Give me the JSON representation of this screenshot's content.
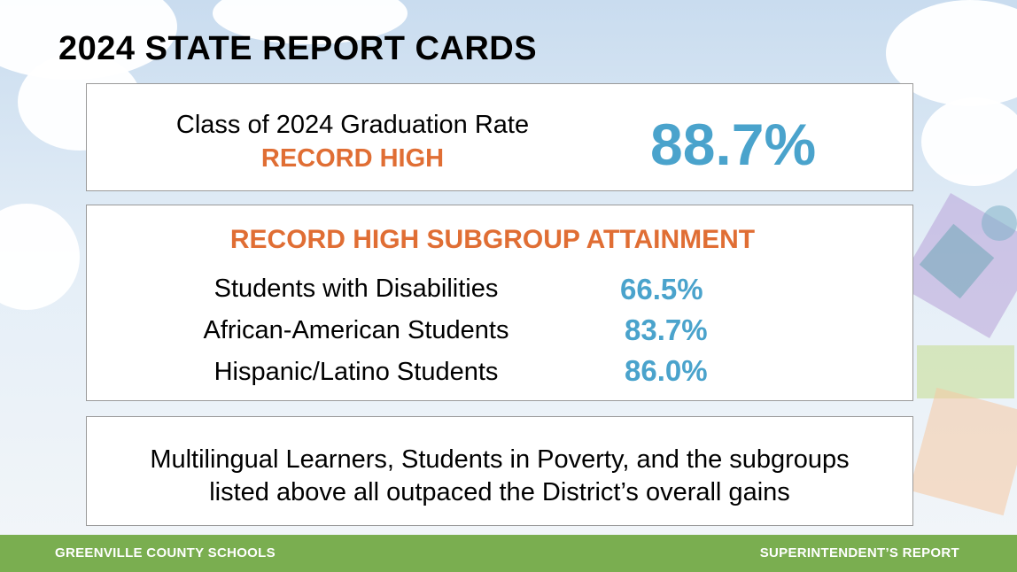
{
  "title": "2024 STATE REPORT CARDS",
  "graduation": {
    "label": "Class of 2024 Graduation Rate",
    "tag": "RECORD HIGH",
    "rate": "88.7%"
  },
  "subgroups": {
    "heading": "RECORD HIGH SUBGROUP ATTAINMENT",
    "rows": [
      {
        "label": "Students with Disabilities",
        "value": "66.5%"
      },
      {
        "label": "African-American Students",
        "value": "83.7%"
      },
      {
        "label": "Hispanic/Latino Students",
        "value": "86.0%"
      }
    ]
  },
  "note": {
    "line1": "Multilingual Learners, Students in Poverty, and the subgroups",
    "line2": "listed above all outpaced the District’s overall gains"
  },
  "footer": {
    "left": "GREENVILLE COUNTY SCHOOLS",
    "right": "SUPERINTENDENT’S REPORT"
  },
  "colors": {
    "accent_orange": "#e06e34",
    "accent_blue": "#4aa3cc",
    "footer_green": "#7aae50"
  }
}
